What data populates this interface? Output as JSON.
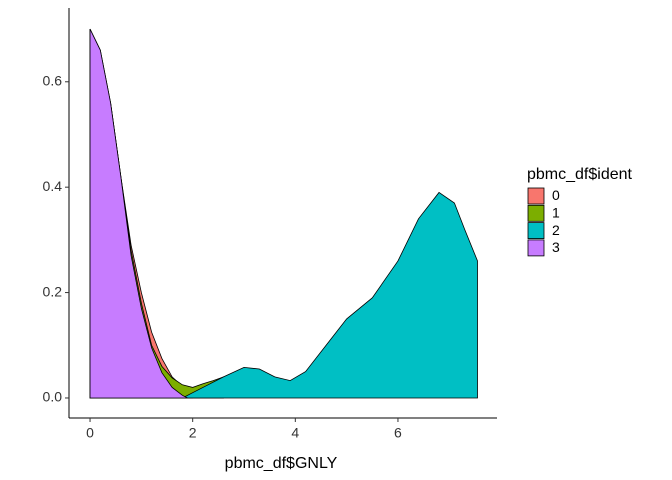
{
  "chart_data": {
    "type": "density",
    "x_label": "pbmc_df$GNLY",
    "legend_title": "pbmc_df$ident",
    "xlim": [
      -0.41,
      7.93
    ],
    "ylim": [
      -0.038,
      0.74
    ],
    "xticks": [
      0,
      2,
      4,
      6
    ],
    "yticks": [
      {
        "value": 0,
        "label": "0.0"
      },
      0.2,
      0.4,
      0.6
    ],
    "series": [
      {
        "name": "0",
        "color": "#f8766d",
        "x": [
          0,
          0.2,
          0.4,
          0.6,
          0.8,
          1.0,
          1.2,
          1.4,
          1.6,
          1.8,
          2.0
        ],
        "values": [
          0.7,
          0.66,
          0.56,
          0.42,
          0.29,
          0.2,
          0.125,
          0.075,
          0.04,
          0.022,
          0.015
        ]
      },
      {
        "name": "1",
        "color": "#7cae00",
        "x": [
          0,
          0.4,
          0.8,
          1.0,
          1.2,
          1.4,
          1.6,
          1.8,
          2.0,
          2.2,
          2.4,
          2.6
        ],
        "values": [
          0.7,
          0.56,
          0.28,
          0.18,
          0.1,
          0.06,
          0.038,
          0.025,
          0.02,
          0.027,
          0.033,
          0.04
        ]
      },
      {
        "name": "2",
        "color": "#00bfc4",
        "x": [
          1.8,
          2.0,
          2.3,
          2.6,
          3.0,
          3.3,
          3.6,
          3.9,
          4.2,
          4.6,
          5.0,
          5.5,
          6.0,
          6.4,
          6.8,
          7.1,
          7.3,
          7.55
        ],
        "values": [
          0.0,
          0.01,
          0.025,
          0.04,
          0.058,
          0.055,
          0.04,
          0.033,
          0.05,
          0.1,
          0.15,
          0.19,
          0.26,
          0.34,
          0.39,
          0.37,
          0.32,
          0.26
        ]
      },
      {
        "name": "3",
        "color": "#c77cff",
        "x": [
          0,
          0.2,
          0.4,
          0.6,
          0.8,
          1.0,
          1.2,
          1.4,
          1.6,
          1.8,
          1.9
        ],
        "values": [
          0.7,
          0.66,
          0.56,
          0.42,
          0.27,
          0.17,
          0.095,
          0.048,
          0.02,
          0.005,
          0.0
        ]
      }
    ]
  }
}
